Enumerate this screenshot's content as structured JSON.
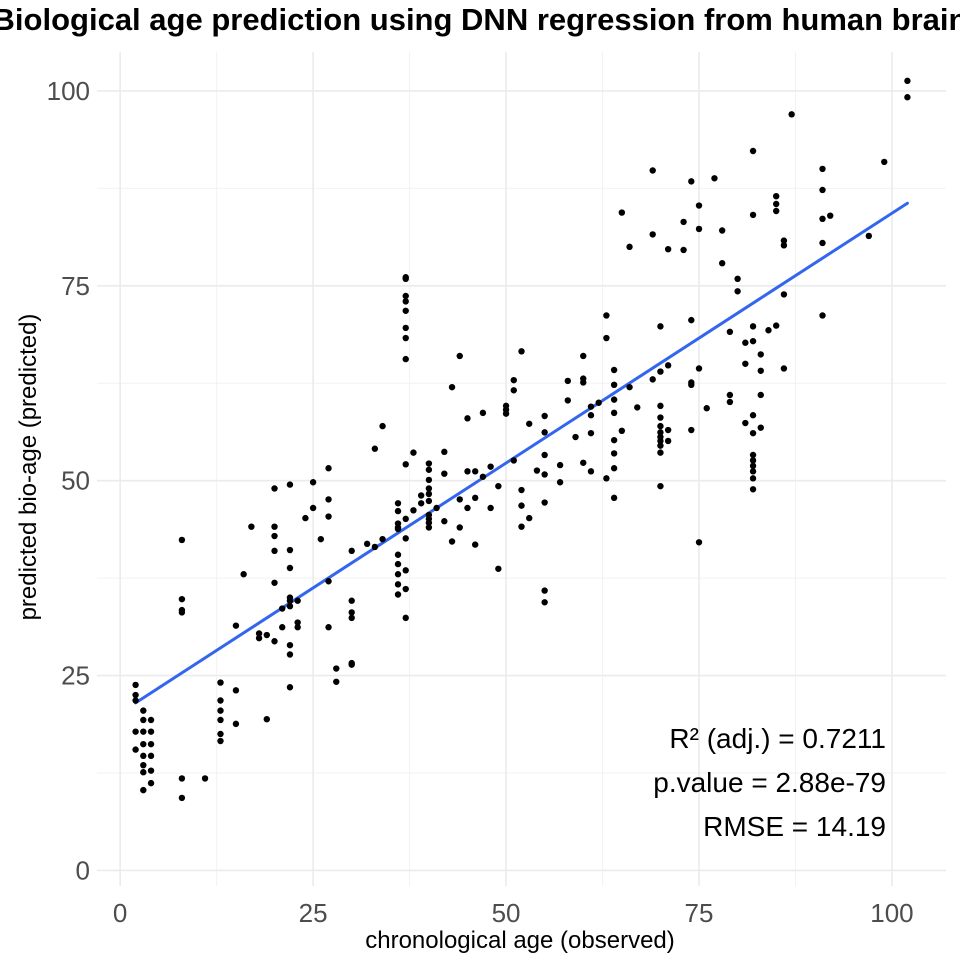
{
  "chart_data": {
    "type": "scatter",
    "title": "Biological age prediction using DNN regression from human brain",
    "xlabel": "chronological age (observed)",
    "ylabel": "predicted bio-age (predicted)",
    "xlim": [
      -3,
      107
    ],
    "ylim": [
      -2,
      105
    ],
    "x_ticks": [
      0,
      25,
      50,
      75,
      100
    ],
    "y_ticks": [
      0,
      25,
      50,
      75,
      100
    ],
    "grid": true,
    "point_color": "#000000",
    "fit_color": "#3366ee",
    "fit_line": {
      "x": [
        2,
        102
      ],
      "y": [
        21.5,
        85.6
      ]
    },
    "annotations": [
      "R² (adj.) =  0.7211",
      "p.value = 2.88e-79",
      "RMSE = 14.19"
    ],
    "points": [
      [
        2,
        23.8
      ],
      [
        2,
        22.5
      ],
      [
        2,
        21.8
      ],
      [
        2,
        17.8
      ],
      [
        2,
        15.5
      ],
      [
        3,
        20.5
      ],
      [
        3,
        19.3
      ],
      [
        3,
        17.8
      ],
      [
        3,
        16.2
      ],
      [
        3,
        14.7
      ],
      [
        3,
        13.5
      ],
      [
        3,
        12.6
      ],
      [
        3,
        10.3
      ],
      [
        4,
        19.3
      ],
      [
        4,
        17.8
      ],
      [
        4,
        16.2
      ],
      [
        4,
        14.7
      ],
      [
        4,
        12.8
      ],
      [
        4,
        11.2
      ],
      [
        8,
        42.4
      ],
      [
        8,
        34.8
      ],
      [
        8,
        33.4
      ],
      [
        8,
        33.1
      ],
      [
        8,
        11.8
      ],
      [
        8,
        9.3
      ],
      [
        11,
        11.8
      ],
      [
        13,
        24.1
      ],
      [
        13,
        21.8
      ],
      [
        13,
        20.5
      ],
      [
        13,
        19.3
      ],
      [
        13,
        17.5
      ],
      [
        13,
        16.6
      ],
      [
        15,
        31.4
      ],
      [
        15,
        23.1
      ],
      [
        15,
        18.8
      ],
      [
        16,
        38
      ],
      [
        17,
        44.1
      ],
      [
        18,
        30.4
      ],
      [
        18,
        29.8
      ],
      [
        19,
        30.2
      ],
      [
        19,
        19.4
      ],
      [
        20,
        49
      ],
      [
        20,
        44.1
      ],
      [
        20,
        42.9
      ],
      [
        20,
        41
      ],
      [
        20,
        36.9
      ],
      [
        20,
        29.4
      ],
      [
        21,
        33.6
      ],
      [
        21,
        31.2
      ],
      [
        22,
        49.5
      ],
      [
        22,
        41.1
      ],
      [
        22,
        38.8
      ],
      [
        22,
        35
      ],
      [
        22,
        34.6
      ],
      [
        22,
        33.9
      ],
      [
        22,
        28.9
      ],
      [
        22,
        27.7
      ],
      [
        22,
        23.5
      ],
      [
        23,
        34.6
      ],
      [
        23,
        31.8
      ],
      [
        23,
        31.2
      ],
      [
        24,
        45.2
      ],
      [
        25,
        49.8
      ],
      [
        25,
        46.5
      ],
      [
        26,
        42.5
      ],
      [
        27,
        51.6
      ],
      [
        27,
        47.6
      ],
      [
        27,
        45.4
      ],
      [
        27,
        37.1
      ],
      [
        27,
        31.2
      ],
      [
        28,
        25.9
      ],
      [
        28,
        24.2
      ],
      [
        30,
        41
      ],
      [
        30,
        34.6
      ],
      [
        30,
        33.1
      ],
      [
        30,
        32.4
      ],
      [
        30,
        26.6
      ],
      [
        30,
        26.4
      ],
      [
        32,
        41.9
      ],
      [
        33,
        41.5
      ],
      [
        33,
        54.1
      ],
      [
        34,
        57
      ],
      [
        34,
        42.5
      ],
      [
        36,
        47.1
      ],
      [
        36,
        46.1
      ],
      [
        36,
        44.5
      ],
      [
        36,
        44
      ],
      [
        36,
        43.8
      ],
      [
        36,
        40.5
      ],
      [
        36,
        39.3
      ],
      [
        36,
        38
      ],
      [
        36,
        36.7
      ],
      [
        36,
        35.4
      ],
      [
        37,
        76.1
      ],
      [
        37,
        75.9
      ],
      [
        37,
        73.7
      ],
      [
        37,
        73
      ],
      [
        37,
        71.8
      ],
      [
        37,
        69.6
      ],
      [
        37,
        68.3
      ],
      [
        37,
        65.6
      ],
      [
        37,
        52.1
      ],
      [
        37,
        45.1
      ],
      [
        37,
        42.6
      ],
      [
        37,
        38.5
      ],
      [
        37,
        36.1
      ],
      [
        37,
        32.4
      ],
      [
        38,
        53.6
      ],
      [
        38,
        46.2
      ],
      [
        39,
        48.1
      ],
      [
        39,
        47.1
      ],
      [
        40,
        52.2
      ],
      [
        40,
        51.4
      ],
      [
        40,
        50.1
      ],
      [
        40,
        49
      ],
      [
        40,
        48.3
      ],
      [
        40,
        47.4
      ],
      [
        40,
        45.6
      ],
      [
        40,
        45.1
      ],
      [
        40,
        44.6
      ],
      [
        40,
        44
      ],
      [
        41,
        46.5
      ],
      [
        42,
        53.7
      ],
      [
        42,
        50.9
      ],
      [
        42,
        44.8
      ],
      [
        43,
        62
      ],
      [
        43,
        42.2
      ],
      [
        44,
        66
      ],
      [
        44,
        47.6
      ],
      [
        44,
        44
      ],
      [
        45,
        58
      ],
      [
        45,
        51.2
      ],
      [
        45,
        46.5
      ],
      [
        46,
        51.2
      ],
      [
        46,
        47.8
      ],
      [
        46,
        41.8
      ],
      [
        47,
        58.7
      ],
      [
        47,
        50.5
      ],
      [
        48,
        51.8
      ],
      [
        48,
        46.5
      ],
      [
        49,
        49.3
      ],
      [
        49,
        38.7
      ],
      [
        50,
        59.6
      ],
      [
        50,
        59.1
      ],
      [
        50,
        58.6
      ],
      [
        51,
        62.9
      ],
      [
        51,
        61.6
      ],
      [
        51,
        52.6
      ],
      [
        52,
        66.6
      ],
      [
        52,
        48.8
      ],
      [
        52,
        46.8
      ],
      [
        52,
        44.1
      ],
      [
        53,
        57.3
      ],
      [
        53,
        45.2
      ],
      [
        54,
        51.3
      ],
      [
        55,
        58.3
      ],
      [
        55,
        56.2
      ],
      [
        55,
        53.3
      ],
      [
        55,
        50.8
      ],
      [
        55,
        47.2
      ],
      [
        55,
        35.9
      ],
      [
        55,
        34.4
      ],
      [
        57,
        52
      ],
      [
        57,
        49.8
      ],
      [
        58,
        62.8
      ],
      [
        58,
        60.3
      ],
      [
        59,
        55.6
      ],
      [
        60,
        66
      ],
      [
        60,
        63.1
      ],
      [
        60,
        62.6
      ],
      [
        60,
        52.3
      ],
      [
        61,
        59.5
      ],
      [
        61,
        58.4
      ],
      [
        61,
        56.1
      ],
      [
        61,
        51.2
      ],
      [
        62,
        60
      ],
      [
        63,
        71.2
      ],
      [
        63,
        68.3
      ],
      [
        63,
        50.3
      ],
      [
        64,
        64.2
      ],
      [
        64,
        62.3
      ],
      [
        64,
        60.4
      ],
      [
        64,
        58.7
      ],
      [
        64,
        55.2
      ],
      [
        64,
        53.5
      ],
      [
        64,
        51.6
      ],
      [
        64,
        47.8
      ],
      [
        65,
        84.4
      ],
      [
        65,
        56.4
      ],
      [
        66,
        80
      ],
      [
        66,
        62
      ],
      [
        67,
        59.4
      ],
      [
        69,
        89.8
      ],
      [
        69,
        81.6
      ],
      [
        69,
        63
      ],
      [
        70,
        69.8
      ],
      [
        70,
        64
      ],
      [
        70,
        59.6
      ],
      [
        70,
        58.1
      ],
      [
        70,
        57
      ],
      [
        70,
        56.2
      ],
      [
        70,
        55.6
      ],
      [
        70,
        55.1
      ],
      [
        70,
        54.5
      ],
      [
        70,
        53.6
      ],
      [
        70,
        49.3
      ],
      [
        71,
        79.7
      ],
      [
        71,
        64.8
      ],
      [
        71,
        56.5
      ],
      [
        71,
        55.1
      ],
      [
        73,
        83.2
      ],
      [
        73,
        79.6
      ],
      [
        74,
        88.4
      ],
      [
        74,
        70.6
      ],
      [
        74,
        62.6
      ],
      [
        74,
        62.3
      ],
      [
        74,
        56.5
      ],
      [
        75,
        85.3
      ],
      [
        75,
        82.3
      ],
      [
        75,
        64.4
      ],
      [
        75,
        42.1
      ],
      [
        76,
        59.3
      ],
      [
        77,
        88.8
      ],
      [
        78,
        82.1
      ],
      [
        78,
        77.9
      ],
      [
        79,
        69.1
      ],
      [
        79,
        61
      ],
      [
        79,
        60.1
      ],
      [
        80,
        75.9
      ],
      [
        80,
        74.3
      ],
      [
        81,
        67.7
      ],
      [
        81,
        65
      ],
      [
        81,
        57.4
      ],
      [
        82,
        92.3
      ],
      [
        82,
        84.1
      ],
      [
        82,
        69.8
      ],
      [
        82,
        67.9
      ],
      [
        82,
        58.4
      ],
      [
        82,
        56.1
      ],
      [
        82,
        53.3
      ],
      [
        82,
        52.6
      ],
      [
        82,
        51.9
      ],
      [
        82,
        51.2
      ],
      [
        82,
        50.3
      ],
      [
        82,
        48.9
      ],
      [
        83,
        66.2
      ],
      [
        83,
        64.1
      ],
      [
        83,
        61
      ],
      [
        83,
        56.8
      ],
      [
        84,
        69.3
      ],
      [
        85,
        86.5
      ],
      [
        85,
        85.5
      ],
      [
        85,
        84.6
      ],
      [
        85,
        69.9
      ],
      [
        86,
        80.8
      ],
      [
        86,
        80.2
      ],
      [
        86,
        73.9
      ],
      [
        86,
        64.4
      ],
      [
        87,
        97
      ],
      [
        91,
        90
      ],
      [
        91,
        87.3
      ],
      [
        91,
        83.6
      ],
      [
        91,
        80.5
      ],
      [
        91,
        71.2
      ],
      [
        92,
        84
      ],
      [
        97,
        81.4
      ],
      [
        99,
        90.9
      ],
      [
        102,
        101.3
      ],
      [
        102,
        99.2
      ]
    ]
  }
}
